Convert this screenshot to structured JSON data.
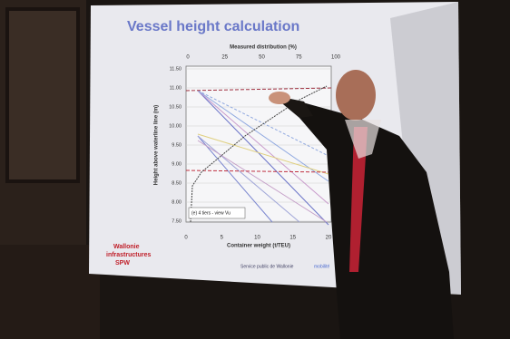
{
  "slide": {
    "title": "Vessel height calculation",
    "top_axis_label": "Measured distribution (%)",
    "top_ticks": [
      "0",
      "25",
      "50",
      "75",
      "100"
    ],
    "y_axis_label": "Height above waterline line (m)",
    "y_ticks": [
      "11.50",
      "11.00",
      "10.50",
      "10.00",
      "9.50",
      "9.00",
      "8.50",
      "8.00",
      "7.50"
    ],
    "x_axis_label": "Container weight (t/TEU)",
    "x_ticks": [
      "0",
      "5",
      "10",
      "15",
      "20"
    ],
    "legend_box": "(e) 4 tiers - view Vu",
    "logo": [
      "Wallonie",
      "infrastructures",
      "SPW"
    ],
    "footer": [
      "Service public de Wallonie",
      "mobilité"
    ]
  }
}
